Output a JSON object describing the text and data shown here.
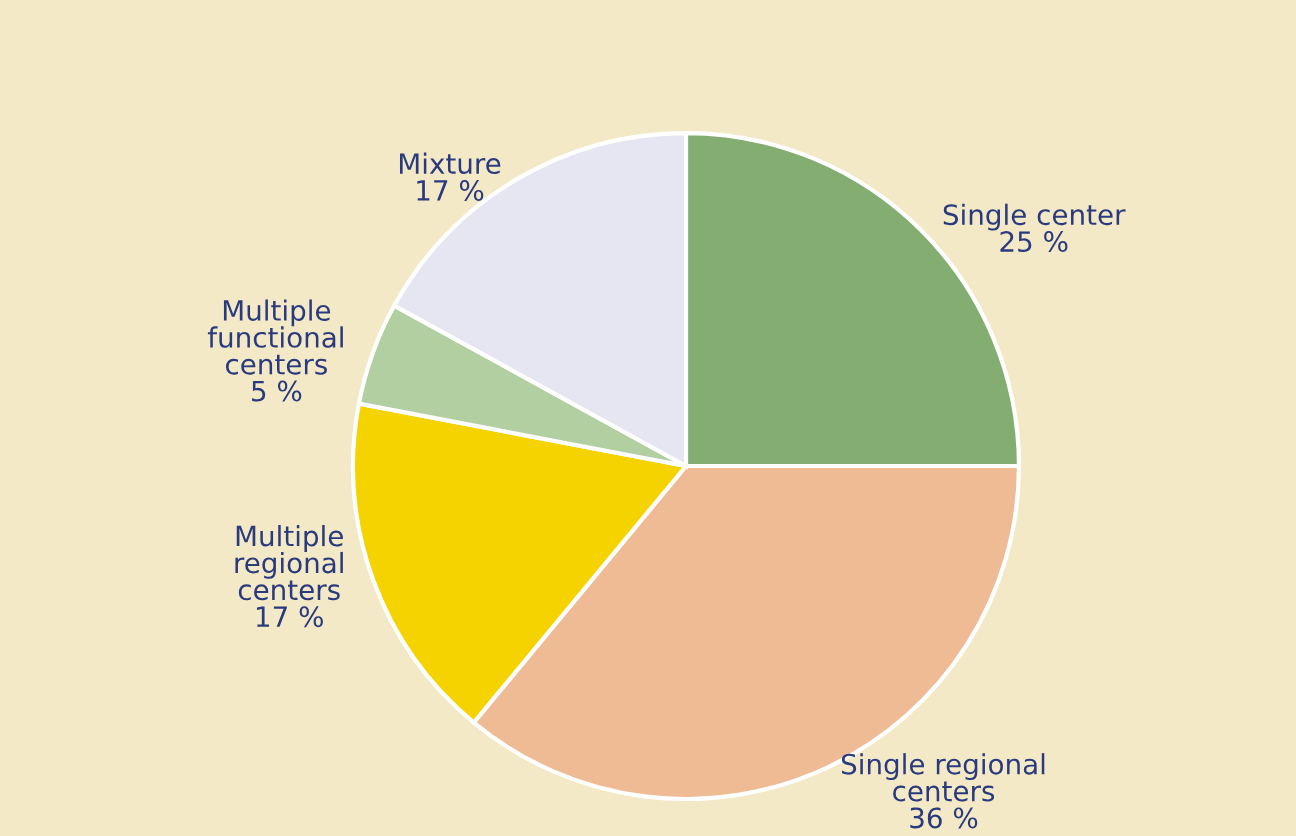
{
  "chart_data": {
    "type": "pie",
    "categories": [
      "Single center",
      "Single regional\ncenters",
      "Multiple\nregional\ncenters",
      "Multiple\nfunctional\ncenters",
      "Mixture"
    ],
    "values": [
      25,
      36,
      17,
      5,
      17
    ],
    "value_labels": [
      "25 %",
      "36 %",
      "17 %",
      "5 %",
      "17 %"
    ],
    "colors": [
      "#84ad72",
      "#efbb95",
      "#f5d300",
      "#b2cfa2",
      "#e6e6f2"
    ],
    "legend": false
  }
}
